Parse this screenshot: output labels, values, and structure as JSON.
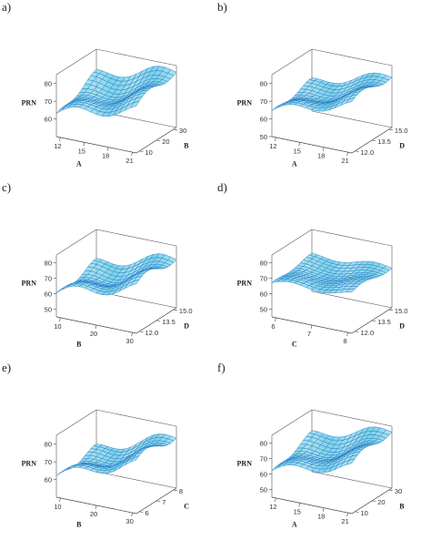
{
  "chart_data": [
    {
      "type": "surface3d",
      "panel_label": "a)",
      "zlabel": "PRN",
      "xlabel": "A",
      "ylabel": "B",
      "x_ticks": [
        "12",
        "15",
        "18",
        "21"
      ],
      "y_ticks": [
        "10",
        "20",
        "30"
      ],
      "z_ticks": [
        "60",
        "70",
        "80"
      ],
      "x_range": [
        12,
        21
      ],
      "y_range": [
        10,
        30
      ],
      "z_range": [
        50,
        85
      ],
      "surface": {
        "base": 61,
        "slope_x": 13,
        "slope_y": 8,
        "wave": 3
      },
      "surface_color": "#7fd3ea",
      "mesh_color": "#2a7fc7"
    },
    {
      "type": "surface3d",
      "panel_label": "b)",
      "zlabel": "PRN",
      "xlabel": "A",
      "ylabel": "D",
      "x_ticks": [
        "12",
        "15",
        "18",
        "21"
      ],
      "y_ticks": [
        "12.0",
        "13.5",
        "15.0"
      ],
      "z_ticks": [
        "50",
        "60",
        "70",
        "80"
      ],
      "x_range": [
        12,
        21
      ],
      "y_range": [
        12,
        15
      ],
      "z_range": [
        50,
        85
      ],
      "surface": {
        "base": 63,
        "slope_x": 14,
        "slope_y": 2,
        "wave": 2.5
      },
      "surface_color": "#7fd3ea",
      "mesh_color": "#2a7fc7"
    },
    {
      "type": "surface3d",
      "panel_label": "c)",
      "zlabel": "PRN",
      "xlabel": "B",
      "ylabel": "D",
      "x_ticks": [
        "10",
        "20",
        "30"
      ],
      "y_ticks": [
        "12.0",
        "13.5",
        "15.0"
      ],
      "z_ticks": [
        "50",
        "60",
        "70",
        "80"
      ],
      "x_range": [
        10,
        30
      ],
      "y_range": [
        12,
        15
      ],
      "z_range": [
        45,
        85
      ],
      "surface": {
        "base": 58,
        "slope_x": 16,
        "slope_y": 3,
        "wave": 3.5
      },
      "surface_color": "#7fd3ea",
      "mesh_color": "#2a7fc7"
    },
    {
      "type": "surface3d",
      "panel_label": "d)",
      "zlabel": "PRN",
      "xlabel": "C",
      "ylabel": "D",
      "x_ticks": [
        "6",
        "7",
        "8"
      ],
      "y_ticks": [
        "12.0",
        "13.5",
        "15.0"
      ],
      "z_ticks": [
        "50",
        "60",
        "70",
        "80"
      ],
      "x_range": [
        6,
        8
      ],
      "y_range": [
        12,
        15
      ],
      "z_range": [
        45,
        85
      ],
      "surface": {
        "base": 66,
        "slope_x": 4,
        "slope_y": 1,
        "wave": 1.8
      },
      "surface_color": "#7fd3ea",
      "mesh_color": "#2a7fc7"
    },
    {
      "type": "surface3d",
      "panel_label": "e)",
      "zlabel": "PRN",
      "xlabel": "B",
      "ylabel": "C",
      "x_ticks": [
        "10",
        "20",
        "30"
      ],
      "y_ticks": [
        "6",
        "7",
        "8"
      ],
      "z_ticks": [
        "60",
        "70",
        "80"
      ],
      "x_range": [
        10,
        30
      ],
      "y_range": [
        6,
        8
      ],
      "z_range": [
        50,
        85
      ],
      "surface": {
        "base": 60,
        "slope_x": 18,
        "slope_y": 1,
        "wave": 3
      },
      "surface_color": "#7fd3ea",
      "mesh_color": "#2a7fc7"
    },
    {
      "type": "surface3d",
      "panel_label": "f)",
      "zlabel": "PRN",
      "xlabel": "A",
      "ylabel": "B",
      "x_ticks": [
        "12",
        "15",
        "18",
        "21"
      ],
      "y_ticks": [
        "10",
        "20",
        "30"
      ],
      "z_ticks": [
        "50",
        "60",
        "70",
        "80"
      ],
      "x_range": [
        12,
        21
      ],
      "y_range": [
        10,
        30
      ],
      "z_range": [
        45,
        85
      ],
      "surface": {
        "base": 60,
        "slope_x": 15,
        "slope_y": 7,
        "wave": 3
      },
      "surface_color": "#7fd3ea",
      "mesh_color": "#2a7fc7"
    }
  ]
}
